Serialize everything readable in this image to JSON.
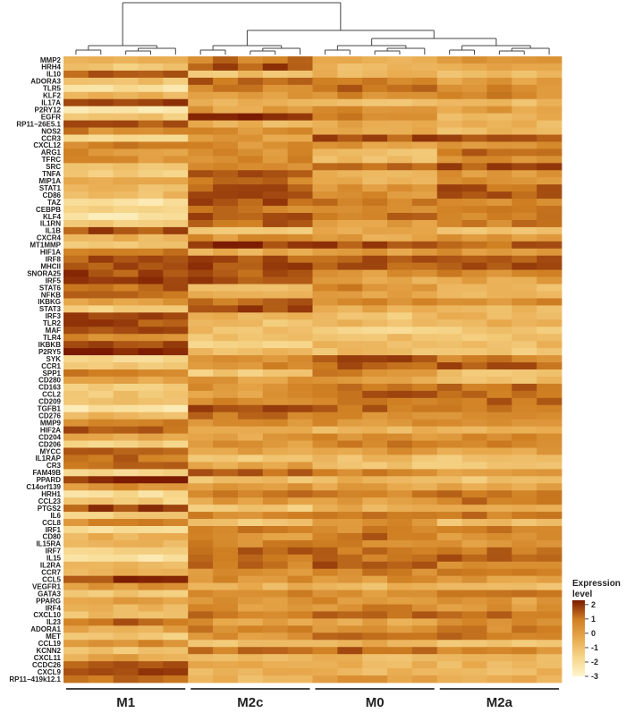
{
  "chart_data": {
    "type": "heatmap",
    "title": "",
    "rows": [
      "MMP2",
      "HRH4",
      "IL10",
      "ADORA3",
      "TLR5",
      "KLF2",
      "IL17A",
      "P2RY12",
      "EGFR",
      "RP11−26E5.1",
      "NOS2",
      "CCR3",
      "CXCL12",
      "ARG1",
      "TFRC",
      "SRC",
      "TNFA",
      "MIP1A",
      "STAT1",
      "CD86",
      "TAZ",
      "CEBPB",
      "KLF4",
      "IL1RN",
      "IL1B",
      "CXCR4",
      "MT1MMP",
      "HIF1A",
      "IRF8",
      "MHCII",
      "SNORA25",
      "IRF5",
      "STAT6",
      "NFKB",
      "IKBKG",
      "STAT3",
      "IRF3",
      "TLR2",
      "MAF",
      "TLR4",
      "IKBKB",
      "P2RY5",
      "SYK",
      "CCR1",
      "SPP1",
      "CD280",
      "CD163",
      "CCL2",
      "CD209",
      "TGFB1",
      "CD276",
      "MMP9",
      "HIF2A",
      "CD204",
      "CD206",
      "MYCC",
      "IL1RAP",
      "CR3",
      "FAM49B",
      "PPARD",
      "C14orf139",
      "HRH1",
      "CCL23",
      "PTGS2",
      "IL6",
      "CCL8",
      "IRF1",
      "CD80",
      "IL15RA",
      "IRF7",
      "IL15",
      "IL2RA",
      "CCR7",
      "CCL5",
      "VEGFR1",
      "GATA3",
      "PPARG",
      "IRF4",
      "CXCL10",
      "IL23",
      "ADORA1",
      "MET",
      "CCL19",
      "KCNN2",
      "CXCL11",
      "CCDC26",
      "CXCL9",
      "RP11−419k12.1"
    ],
    "groups": [
      {
        "name": "M1",
        "n": 5
      },
      {
        "name": "M2c",
        "n": 5
      },
      {
        "name": "M0",
        "n": 5
      },
      {
        "name": "M2a",
        "n": 5
      }
    ],
    "block_levels": [
      [
        0.1,
        1.0,
        -0.2,
        0.2
      ],
      [
        -1.0,
        1.6,
        -0.4,
        0.1
      ],
      [
        1.6,
        -0.8,
        -0.5,
        -0.7
      ],
      [
        -0.8,
        1.4,
        0.7,
        0.2
      ],
      [
        -2.0,
        0.9,
        1.3,
        0.6
      ],
      [
        -0.4,
        0.5,
        0.6,
        0.7
      ],
      [
        1.6,
        -0.3,
        -0.8,
        -0.6
      ],
      [
        -2.2,
        0.2,
        0.8,
        0.3
      ],
      [
        -0.9,
        2.0,
        0.7,
        -0.3
      ],
      [
        1.7,
        -0.4,
        0.2,
        -0.4
      ],
      [
        0.8,
        0.6,
        0.1,
        -0.6
      ],
      [
        -1.9,
        0.2,
        1.6,
        1.7
      ],
      [
        0.9,
        0.6,
        0.4,
        0.4
      ],
      [
        0.5,
        0.6,
        -0.7,
        1.2
      ],
      [
        0.6,
        0.6,
        -0.6,
        0.4
      ],
      [
        -0.8,
        0.6,
        1.0,
        1.5
      ],
      [
        -1.3,
        1.6,
        -0.3,
        0.5
      ],
      [
        0.1,
        1.0,
        -0.2,
        0.5
      ],
      [
        -0.6,
        1.6,
        0.5,
        1.4
      ],
      [
        -0.6,
        1.4,
        0.6,
        1.5
      ],
      [
        -2.1,
        1.5,
        1.1,
        0.6
      ],
      [
        -1.5,
        1.0,
        0.5,
        0.8
      ],
      [
        -2.2,
        1.6,
        1.2,
        0.8
      ],
      [
        -1.0,
        1.3,
        0.4,
        0.9
      ],
      [
        1.6,
        -1.2,
        0.0,
        -0.8
      ],
      [
        -0.3,
        0.6,
        0.1,
        0.4
      ],
      [
        -1.2,
        2.0,
        1.6,
        1.4
      ],
      [
        1.3,
        -0.2,
        0.3,
        0.4
      ],
      [
        1.5,
        1.5,
        1.5,
        1.5
      ],
      [
        1.6,
        1.6,
        1.6,
        1.5
      ],
      [
        1.7,
        1.6,
        0.5,
        0.8
      ],
      [
        1.8,
        1.6,
        0.0,
        0.0
      ],
      [
        1.3,
        -0.8,
        0.7,
        -0.7
      ],
      [
        1.5,
        -0.2,
        0.1,
        -0.6
      ],
      [
        0.3,
        1.2,
        0.6,
        0.6
      ],
      [
        -1.2,
        1.8,
        -0.2,
        -0.4
      ],
      [
        1.5,
        -0.4,
        -0.9,
        -0.3
      ],
      [
        1.6,
        -0.8,
        -0.5,
        -0.4
      ],
      [
        1.7,
        -0.7,
        -1.6,
        -1.0
      ],
      [
        0.7,
        -0.9,
        -0.8,
        -0.9
      ],
      [
        1.6,
        -1.2,
        -0.4,
        -0.6
      ],
      [
        2.1,
        -0.7,
        -0.7,
        -0.9
      ],
      [
        -1.5,
        0.5,
        1.5,
        0.9
      ],
      [
        -0.8,
        0.7,
        1.3,
        1.4
      ],
      [
        1.0,
        -1.2,
        0.8,
        -0.9
      ],
      [
        -0.1,
        0.3,
        0.1,
        -0.6
      ],
      [
        -1.2,
        0.6,
        0.9,
        1.2
      ],
      [
        -1.0,
        0.4,
        1.4,
        1.2
      ],
      [
        -0.7,
        0.6,
        0.9,
        1.3
      ],
      [
        -2.2,
        1.6,
        1.3,
        1.0
      ],
      [
        -0.5,
        1.1,
        0.7,
        0.8
      ],
      [
        0.9,
        0.5,
        0.5,
        0.5
      ],
      [
        1.5,
        -0.3,
        -0.4,
        -0.5
      ],
      [
        0.1,
        0.2,
        0.6,
        0.7
      ],
      [
        -1.3,
        0.4,
        0.9,
        1.0
      ],
      [
        1.2,
        0.0,
        0.4,
        0.2
      ],
      [
        1.2,
        -0.9,
        -0.7,
        -1.0
      ],
      [
        1.3,
        0.0,
        -0.9,
        -0.9
      ],
      [
        -1.5,
        1.5,
        0.9,
        0.5
      ],
      [
        2.0,
        -0.7,
        -0.4,
        -1.0
      ],
      [
        0.5,
        0.4,
        0.1,
        0.2
      ],
      [
        -1.8,
        1.0,
        0.8,
        1.1
      ],
      [
        -1.2,
        0.3,
        0.3,
        1.0
      ],
      [
        1.7,
        -1.0,
        -0.3,
        -0.4
      ],
      [
        -1.2,
        0.9,
        0.8,
        1.1
      ],
      [
        0.8,
        -1.0,
        0.6,
        -0.7
      ],
      [
        -1.7,
        0.8,
        0.7,
        1.1
      ],
      [
        -0.4,
        0.5,
        1.2,
        0.5
      ],
      [
        -0.4,
        0.7,
        0.7,
        0.5
      ],
      [
        -1.5,
        1.2,
        1.3,
        1.2
      ],
      [
        -2.0,
        1.2,
        1.1,
        1.5
      ],
      [
        -0.4,
        1.1,
        1.4,
        0.5
      ],
      [
        -0.3,
        0.7,
        0.8,
        0.9
      ],
      [
        1.9,
        0.6,
        0.5,
        0.4
      ],
      [
        0.4,
        -0.3,
        -0.5,
        -0.6
      ],
      [
        -1.1,
        0.8,
        0.3,
        0.8
      ],
      [
        0.3,
        0.6,
        0.5,
        0.3
      ],
      [
        -0.4,
        0.5,
        0.7,
        0.5
      ],
      [
        -0.8,
        1.1,
        1.5,
        1.1
      ],
      [
        1.3,
        0.3,
        0.1,
        0.8
      ],
      [
        0.0,
        0.9,
        0.3,
        0.9
      ],
      [
        -1.0,
        0.6,
        1.4,
        1.1
      ],
      [
        0.7,
        -0.7,
        -0.2,
        -0.8
      ],
      [
        -0.8,
        1.2,
        1.3,
        0.7
      ],
      [
        0.0,
        -0.4,
        -0.5,
        -0.5
      ],
      [
        1.4,
        -0.3,
        -0.4,
        -0.4
      ],
      [
        1.6,
        -0.3,
        -0.4,
        -0.4
      ],
      [
        1.3,
        -0.4,
        0.2,
        -0.3
      ]
    ],
    "legend": {
      "title_line1": "Expression",
      "title_line2": "level",
      "ticks": [
        "2",
        "1",
        "0",
        "-1",
        "-2",
        "-3"
      ],
      "tick_values": [
        2,
        1,
        0,
        -1,
        -2,
        -3
      ],
      "range": [
        -3,
        2.3
      ],
      "position": "bottom-right"
    },
    "colors": {
      "low": "#fff5cc",
      "mid_low": "#f6d68a",
      "mid": "#e8a94d",
      "mid_high": "#cf7f22",
      "high": "#7a1a00",
      "dendrogram": "#444444"
    },
    "dendrogram": "column clustering shown on top"
  }
}
